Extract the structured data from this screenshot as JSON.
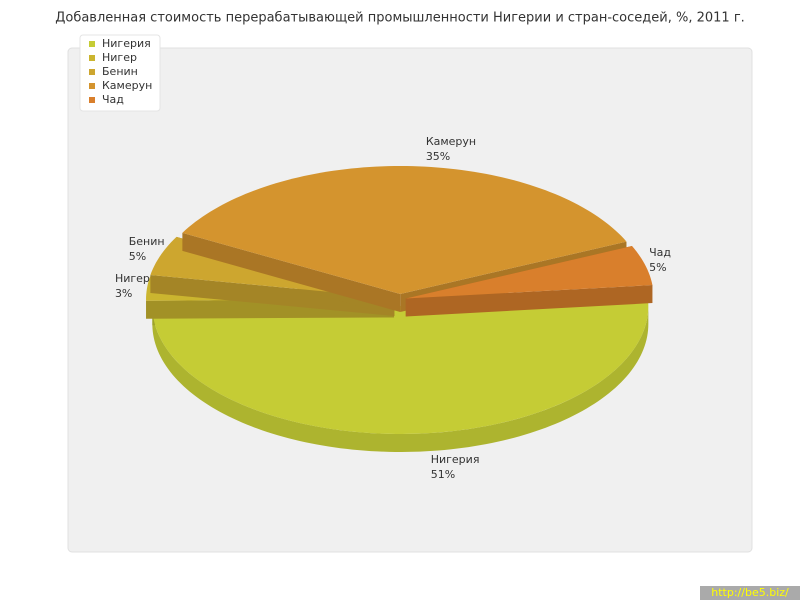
{
  "chart_data": {
    "type": "pie",
    "title": "Добавленная стоимость перерабатывающей промышленности Нигерии и стран-соседей, %, 2011 г.",
    "categories": [
      "Нигерия",
      "Нигер",
      "Бенин",
      "Камерун",
      "Чад"
    ],
    "values": [
      51,
      3,
      5,
      35,
      5
    ],
    "value_labels": [
      "51%",
      "3%",
      "5%",
      "35%",
      "5%"
    ],
    "colors": [
      "#c5cc35",
      "#cbb52f",
      "#cda62f",
      "#d4942e",
      "#d97f2c"
    ],
    "legend": "top-left"
  },
  "watermark": "http://be5.biz/"
}
